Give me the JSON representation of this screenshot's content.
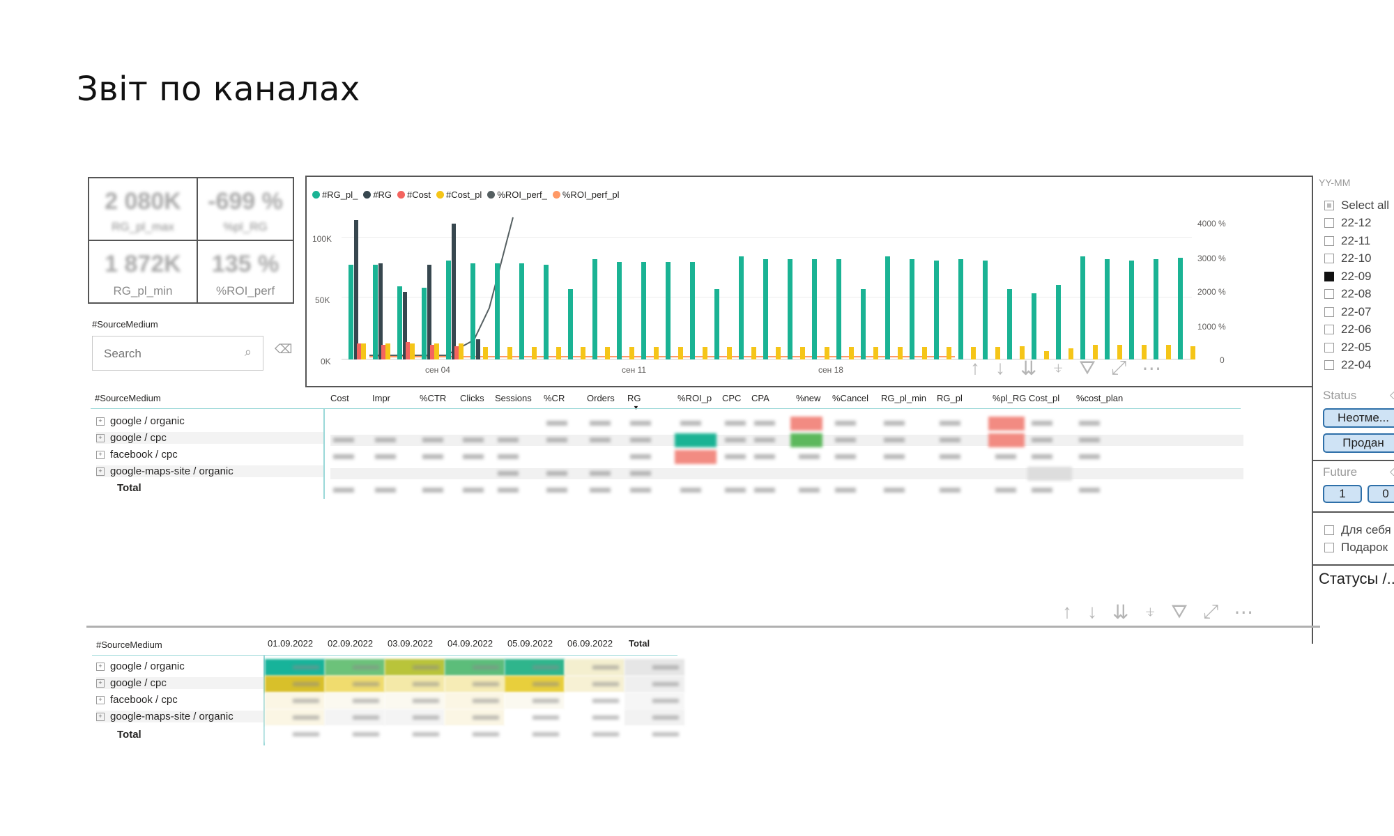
{
  "page_title": "Звіт по каналах",
  "kpis": [
    {
      "value": "2 080K",
      "label": "RG_pl_max",
      "label_blurred": true
    },
    {
      "value": "-699 %",
      "label": "%pl_RG",
      "label_blurred": true
    },
    {
      "value": "1 872K",
      "label": "RG_pl_min",
      "label_blurred": false
    },
    {
      "value": "135 %",
      "label": "%ROI_perf",
      "label_blurred": false
    }
  ],
  "source_slicer": {
    "title": "#SourceMedium",
    "search_placeholder": "Search"
  },
  "chart": {
    "legend": [
      {
        "name": "#RG_pl_",
        "color": "#1ab394"
      },
      {
        "name": "#RG",
        "color": "#37474f"
      },
      {
        "name": "#Cost",
        "color": "#f4645f"
      },
      {
        "name": "#Cost_pl",
        "color": "#f5c518"
      },
      {
        "name": "%ROI_perf_",
        "color": "#555f61"
      },
      {
        "name": "%ROI_perf_pl",
        "color": "#ff9966"
      }
    ],
    "y_left_ticks": [
      "100K",
      "50K",
      "0K"
    ],
    "y_right_ticks": [
      "4000 %",
      "3000 %",
      "2000 %",
      "1000 %",
      "0"
    ],
    "x_ticks": [
      "сен 04",
      "сен 11",
      "сен 18"
    ]
  },
  "chart_data": {
    "type": "bar",
    "ylim": [
      0,
      110000
    ],
    "series": [
      {
        "name": "#RG_pl_",
        "values": [
          70000,
          70000,
          54000,
          53000,
          73000,
          71000,
          71000,
          71000,
          70000,
          52000,
          74000,
          72000,
          72000,
          72000,
          72000,
          52000,
          76000,
          74000,
          74000,
          74000,
          74000,
          52000,
          76000,
          74000,
          73000,
          74000,
          73000,
          52000,
          49000,
          55000,
          76000,
          74000,
          73000,
          74000,
          75000
        ]
      },
      {
        "name": "#RG",
        "values": [
          103000,
          71000,
          50000,
          70000,
          100000,
          15000
        ]
      },
      {
        "name": "#Cost",
        "values": [
          12000,
          11000,
          13000,
          11000,
          10000
        ]
      },
      {
        "name": "#Cost_pl",
        "values": [
          12000,
          12000,
          12000,
          12000,
          12000,
          9000,
          9000,
          9000,
          9000,
          9000,
          9000,
          9000,
          9000,
          9000,
          9000,
          9000,
          9000,
          9000,
          9000,
          9000,
          9000,
          9000,
          9000,
          9000,
          9000,
          9000,
          9000,
          10000,
          6000,
          8000,
          11000,
          11000,
          11000,
          11000,
          10000
        ]
      }
    ]
  },
  "toolbar_icons": [
    "arrow-up-icon",
    "arrow-down-icon",
    "double-arrow-down-icon",
    "expand-hierarchy-icon",
    "filter-icon",
    "focus-mode-icon",
    "more-icon"
  ],
  "month_slicer": {
    "title": "YY-MM",
    "items": [
      {
        "label": "Select all",
        "state": "partial"
      },
      {
        "label": "22-12",
        "state": "off"
      },
      {
        "label": "22-11",
        "state": "off"
      },
      {
        "label": "22-10",
        "state": "off"
      },
      {
        "label": "22-09",
        "state": "on"
      },
      {
        "label": "22-08",
        "state": "off"
      },
      {
        "label": "22-07",
        "state": "off"
      },
      {
        "label": "22-06",
        "state": "off"
      },
      {
        "label": "22-05",
        "state": "off"
      },
      {
        "label": "22-04",
        "state": "off"
      }
    ]
  },
  "status_slicer": {
    "title": "Status",
    "options": [
      "Неотме...",
      "Продан"
    ]
  },
  "future_slicer": {
    "title": "Future",
    "options": [
      "1",
      "0"
    ]
  },
  "type_slicer": {
    "options": [
      "Для себя",
      "Подарок"
    ]
  },
  "statuses_title": "Статусы /..",
  "matrix1": {
    "row_header": "#SourceMedium",
    "columns": [
      "Cost",
      "Impr",
      "%CTR",
      "Clicks",
      "Sessions",
      "%CR",
      "Orders",
      "RG",
      "%ROI_p",
      "CPC",
      "CPA",
      "%new",
      "%Cancel",
      "RG_pl_min",
      "RG_pl",
      "%pl_RG",
      "Cost_pl",
      "%cost_plan"
    ],
    "rows": [
      "google / organic",
      "google / cpc",
      "facebook / cpc",
      "google-maps-site / organic"
    ],
    "total_label": "Total"
  },
  "matrix2": {
    "row_header": "#SourceMedium",
    "columns": [
      "01.09.2022",
      "02.09.2022",
      "03.09.2022",
      "04.09.2022",
      "05.09.2022",
      "06.09.2022",
      "Total"
    ],
    "rows": [
      "google / organic",
      "google / cpc",
      "facebook / cpc",
      "google-maps-site / organic"
    ],
    "total_label": "Total"
  }
}
